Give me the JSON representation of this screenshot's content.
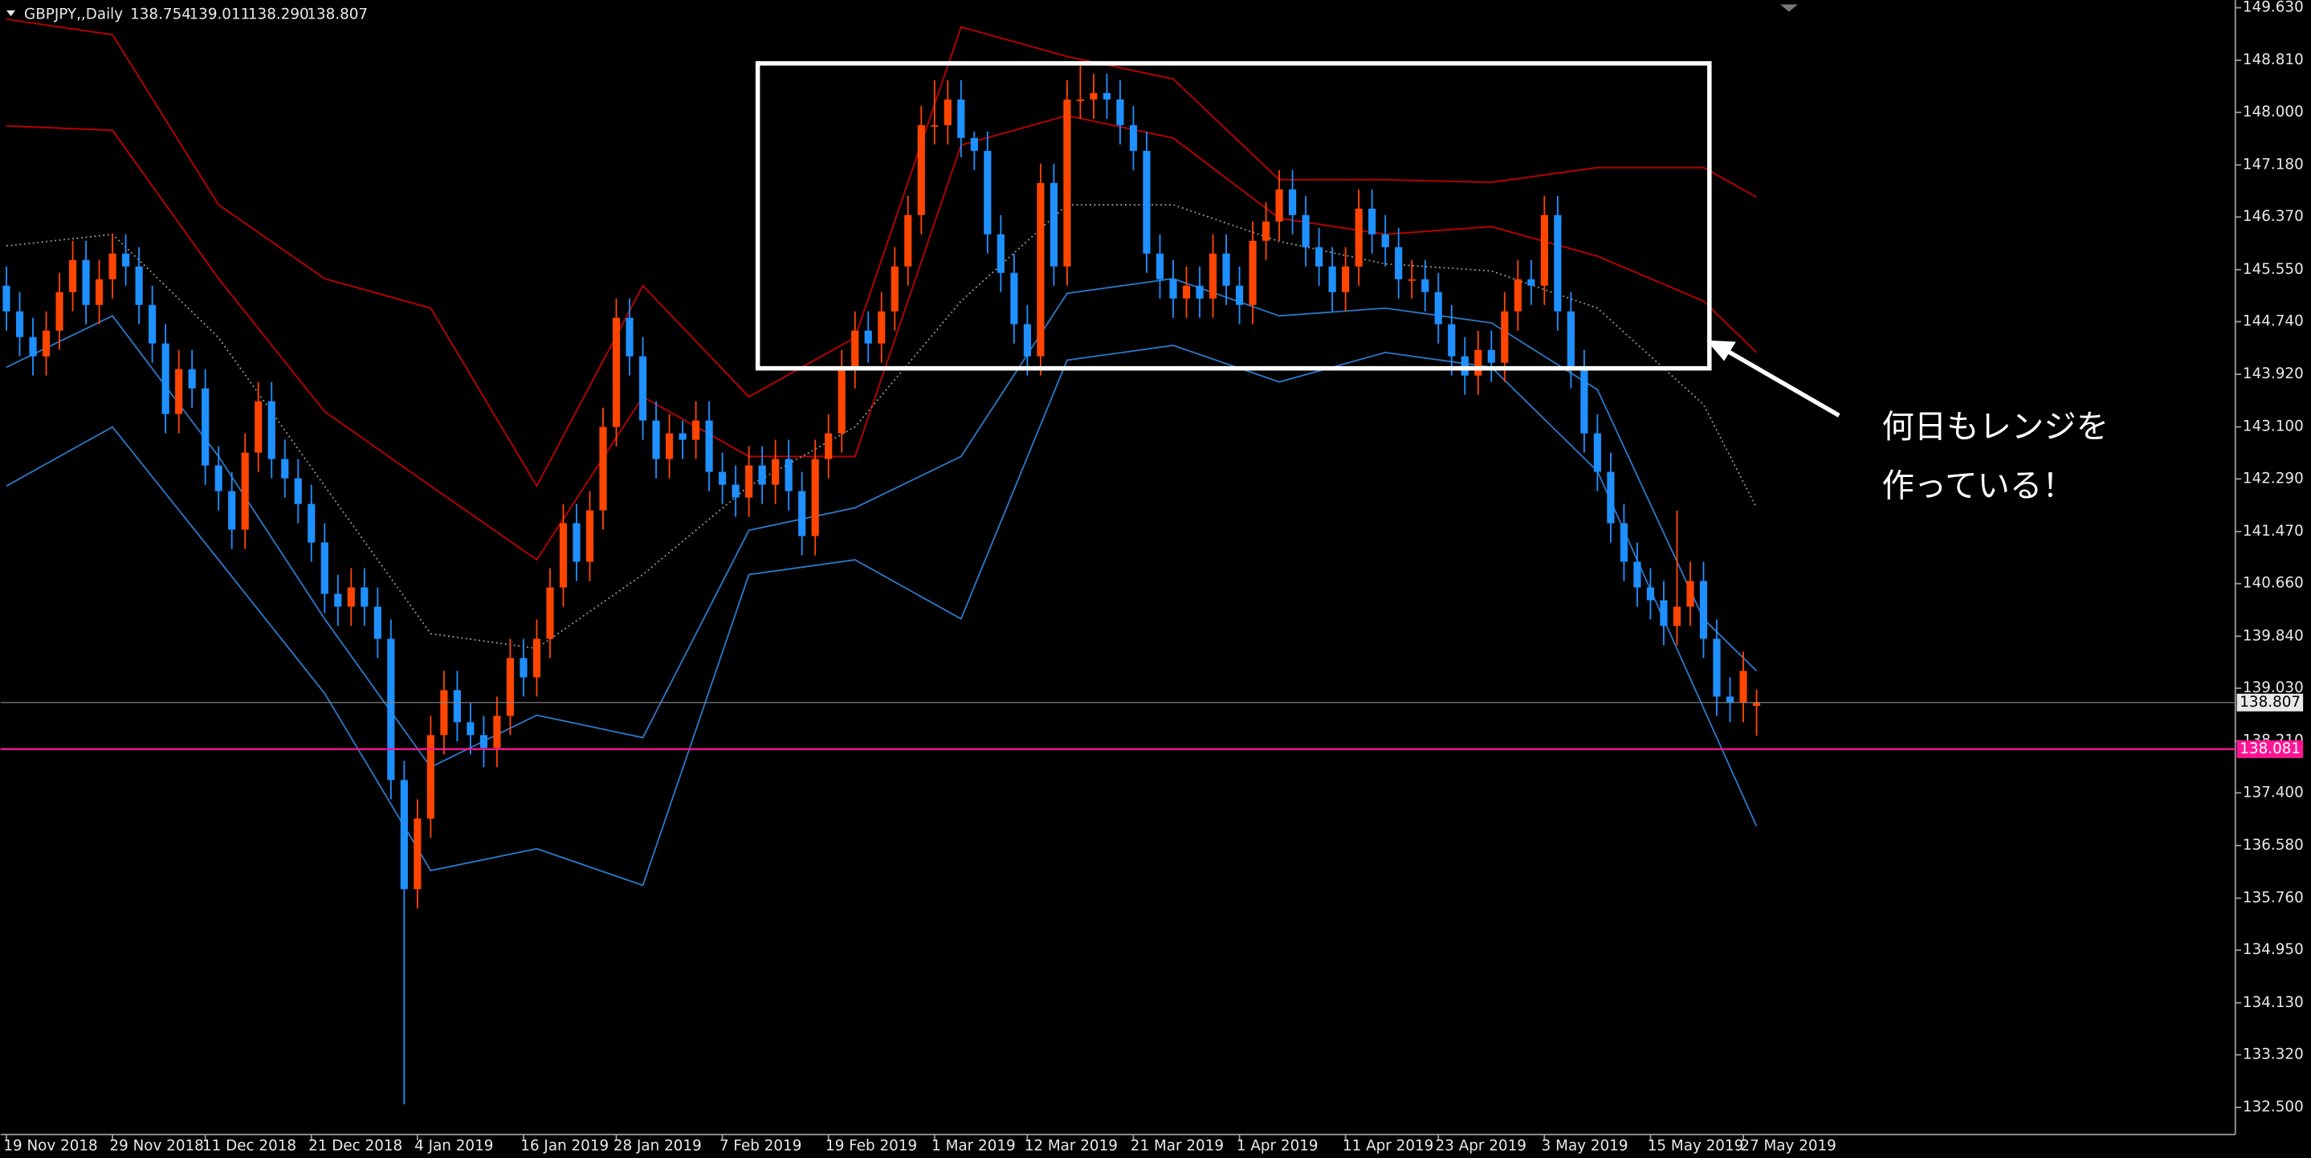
{
  "chart_data": {
    "type": "candlestick",
    "title": "GBPJPY,,Daily",
    "header_values": [
      "138.754",
      "139.011",
      "138.290",
      "138.807"
    ],
    "categories": [
      "19 Nov 2018",
      null,
      null,
      null,
      null,
      null,
      null,
      null,
      "29 Nov 2018",
      null,
      null,
      null,
      null,
      null,
      null,
      "11 Dec 2018",
      null,
      null,
      null,
      null,
      null,
      null,
      null,
      "21 Dec 2018",
      null,
      null,
      null,
      null,
      null,
      null,
      null,
      "4 Jan 2019",
      null,
      null,
      null,
      null,
      null,
      null,
      null,
      "16 Jan 2019",
      null,
      null,
      null,
      null,
      null,
      null,
      "28 Jan 2019",
      null,
      null,
      null,
      null,
      null,
      null,
      null,
      "7 Feb 2019",
      null,
      null,
      null,
      null,
      null,
      null,
      null,
      "19 Feb 2019",
      null,
      null,
      null,
      null,
      null,
      null,
      null,
      "1 Mar 2019",
      null,
      null,
      null,
      null,
      null,
      null,
      "12 Mar 2019",
      null,
      null,
      null,
      null,
      null,
      null,
      null,
      "21 Mar 2019",
      null,
      null,
      null,
      null,
      null,
      null,
      null,
      "1 Apr 2019",
      null,
      null,
      null,
      null,
      null,
      null,
      null,
      "11 Apr 2019",
      null,
      null,
      null,
      null,
      null,
      null,
      "23 Apr 2019",
      null,
      null,
      null,
      null,
      null,
      null,
      null,
      "3 May 2019",
      null,
      null,
      null,
      null,
      null,
      null,
      null,
      "15 May 2019",
      null,
      null,
      null,
      null,
      null,
      null,
      "27 May 2019",
      null
    ],
    "open": [
      145.3,
      144.9,
      144.5,
      144.2,
      144.6,
      145.2,
      145.7,
      145.0,
      145.4,
      145.8,
      145.6,
      145.0,
      144.4,
      143.3,
      144.0,
      143.7,
      142.5,
      142.1,
      141.5,
      142.7,
      143.5,
      142.6,
      142.3,
      141.9,
      141.3,
      140.5,
      140.3,
      140.6,
      140.3,
      139.8,
      137.6,
      135.9,
      137.0,
      138.3,
      139.0,
      138.5,
      138.3,
      138.1,
      138.6,
      139.5,
      139.2,
      139.8,
      140.6,
      141.6,
      141.0,
      141.8,
      143.1,
      144.8,
      144.2,
      143.2,
      142.6,
      143.0,
      142.9,
      143.2,
      142.4,
      142.2,
      142.0,
      142.5,
      142.2,
      142.6,
      142.1,
      141.4,
      142.6,
      143.0,
      144.0,
      144.6,
      144.4,
      144.9,
      145.6,
      146.4,
      147.8,
      147.8,
      148.2,
      147.6,
      147.4,
      146.1,
      145.5,
      144.7,
      144.2,
      146.9,
      145.6,
      148.2,
      148.2,
      148.3,
      148.2,
      147.8,
      147.4,
      145.8,
      145.4,
      145.1,
      145.3,
      145.1,
      145.8,
      145.3,
      145.0,
      146.0,
      146.3,
      146.8,
      146.4,
      145.9,
      145.6,
      145.2,
      145.6,
      146.5,
      146.1,
      145.9,
      145.4,
      145.4,
      145.2,
      144.7,
      144.2,
      143.9,
      144.3,
      144.1,
      144.9,
      145.4,
      145.3,
      146.4,
      144.9,
      144.0,
      143.0,
      142.4,
      141.6,
      141.0,
      140.6,
      140.4,
      140.0,
      140.3,
      140.7,
      139.8,
      138.9,
      138.8,
      138.754
    ],
    "high": [
      145.6,
      145.2,
      144.8,
      144.9,
      145.5,
      146.0,
      146.0,
      145.7,
      146.1,
      146.1,
      145.9,
      145.3,
      144.7,
      144.3,
      144.3,
      144.0,
      142.8,
      142.4,
      143.0,
      143.8,
      143.8,
      142.9,
      142.6,
      142.2,
      141.6,
      140.8,
      140.9,
      140.9,
      140.6,
      140.1,
      137.9,
      137.3,
      138.6,
      139.3,
      139.3,
      138.8,
      138.6,
      138.9,
      139.8,
      139.8,
      140.1,
      140.9,
      141.9,
      141.9,
      142.1,
      143.4,
      145.1,
      145.1,
      144.5,
      143.5,
      143.3,
      143.2,
      143.5,
      143.5,
      142.7,
      142.5,
      142.8,
      142.8,
      142.9,
      142.9,
      142.4,
      142.9,
      143.3,
      144.3,
      144.9,
      144.9,
      145.2,
      145.9,
      146.7,
      148.1,
      148.5,
      148.5,
      148.5,
      147.7,
      147.7,
      146.4,
      145.8,
      145.0,
      147.2,
      147.2,
      148.5,
      148.8,
      148.6,
      148.6,
      148.5,
      148.1,
      147.7,
      146.1,
      145.7,
      145.6,
      145.6,
      146.1,
      146.1,
      145.6,
      146.3,
      146.6,
      147.1,
      147.1,
      146.7,
      146.2,
      145.9,
      145.9,
      146.8,
      146.8,
      146.4,
      146.2,
      145.7,
      145.7,
      145.5,
      145.0,
      144.5,
      144.6,
      144.6,
      145.2,
      145.7,
      145.7,
      146.7,
      146.7,
      145.2,
      144.3,
      143.3,
      142.7,
      141.9,
      141.3,
      140.9,
      140.7,
      141.8,
      141.0,
      141.0,
      140.1,
      139.2,
      139.6,
      139.011
    ],
    "low": [
      144.6,
      144.2,
      143.9,
      143.9,
      144.3,
      144.9,
      144.7,
      144.7,
      145.1,
      145.3,
      144.7,
      144.1,
      143.0,
      143.0,
      143.4,
      142.2,
      141.8,
      141.2,
      141.2,
      142.4,
      142.3,
      142.0,
      141.6,
      141.0,
      140.2,
      140.0,
      140.0,
      140.0,
      139.5,
      137.3,
      132.55,
      135.6,
      136.7,
      138.0,
      138.2,
      138.0,
      137.8,
      137.8,
      138.3,
      138.9,
      138.9,
      139.5,
      140.3,
      140.7,
      140.7,
      141.5,
      142.8,
      143.9,
      142.9,
      142.3,
      142.3,
      142.6,
      142.6,
      142.1,
      141.9,
      141.7,
      141.7,
      141.9,
      141.9,
      141.8,
      141.1,
      141.1,
      142.3,
      142.7,
      143.7,
      144.1,
      144.1,
      144.6,
      145.3,
      146.1,
      147.5,
      147.5,
      147.3,
      147.1,
      145.8,
      145.2,
      144.4,
      143.9,
      143.9,
      145.3,
      145.3,
      147.9,
      147.9,
      147.9,
      147.5,
      147.1,
      145.5,
      145.1,
      144.8,
      144.8,
      144.8,
      144.8,
      145.0,
      144.7,
      144.7,
      145.7,
      146.0,
      146.1,
      145.6,
      145.3,
      144.9,
      144.9,
      145.3,
      145.8,
      145.6,
      145.1,
      145.1,
      144.9,
      144.4,
      143.9,
      143.6,
      143.6,
      143.8,
      143.8,
      144.6,
      145.0,
      145.0,
      144.6,
      143.7,
      142.7,
      142.1,
      141.3,
      140.7,
      140.3,
      140.1,
      139.7,
      139.7,
      140.0,
      139.5,
      138.6,
      138.5,
      138.5,
      138.29
    ],
    "close": [
      144.9,
      144.5,
      144.2,
      144.6,
      145.2,
      145.7,
      145.0,
      145.4,
      145.8,
      145.6,
      145.0,
      144.4,
      143.3,
      144.0,
      143.7,
      142.5,
      142.1,
      141.5,
      142.7,
      143.5,
      142.6,
      142.3,
      141.9,
      141.3,
      140.5,
      140.3,
      140.6,
      140.3,
      139.8,
      137.6,
      135.9,
      137.0,
      138.3,
      139.0,
      138.5,
      138.3,
      138.1,
      138.6,
      139.5,
      139.2,
      139.8,
      140.6,
      141.6,
      141.0,
      141.8,
      143.1,
      144.8,
      144.2,
      143.2,
      142.6,
      143.0,
      142.9,
      143.2,
      142.4,
      142.2,
      142.0,
      142.5,
      142.2,
      142.6,
      142.1,
      141.4,
      142.6,
      143.0,
      144.0,
      144.6,
      144.4,
      144.9,
      145.6,
      146.4,
      147.8,
      147.8,
      148.2,
      147.6,
      147.4,
      146.1,
      145.5,
      144.7,
      144.2,
      146.9,
      145.6,
      148.2,
      148.2,
      148.3,
      148.2,
      147.8,
      147.4,
      145.8,
      145.4,
      145.1,
      145.3,
      145.1,
      145.8,
      145.3,
      145.0,
      146.0,
      146.3,
      146.8,
      146.4,
      145.9,
      145.6,
      145.2,
      145.6,
      146.5,
      146.1,
      145.9,
      145.4,
      145.4,
      145.2,
      144.7,
      144.2,
      143.9,
      144.3,
      144.1,
      144.9,
      145.4,
      145.3,
      146.4,
      144.9,
      144.0,
      143.0,
      142.4,
      141.6,
      141.0,
      140.6,
      140.4,
      140.0,
      140.3,
      140.7,
      139.8,
      138.9,
      138.8,
      139.3,
      138.807
    ],
    "up_color": "#ff4500",
    "down_color": "#1e90ff",
    "ylim": [
      132.08,
      149.75
    ],
    "yticks": [
      {
        "value": 149.63,
        "label": "149.630"
      },
      {
        "value": 148.81,
        "label": "148.810"
      },
      {
        "value": 148.0,
        "label": "148.000"
      },
      {
        "value": 147.18,
        "label": "147.180"
      },
      {
        "value": 146.37,
        "label": "146.370"
      },
      {
        "value": 145.55,
        "label": "145.550"
      },
      {
        "value": 144.74,
        "label": "144.740"
      },
      {
        "value": 143.92,
        "label": "143.920"
      },
      {
        "value": 143.1,
        "label": "143.100"
      },
      {
        "value": 142.29,
        "label": "142.290"
      },
      {
        "value": 141.47,
        "label": "141.470"
      },
      {
        "value": 140.66,
        "label": "140.660"
      },
      {
        "value": 139.84,
        "label": "139.840"
      },
      {
        "value": 139.03,
        "label": "139.030"
      },
      {
        "value": 138.21,
        "label": "138.210"
      },
      {
        "value": 137.4,
        "label": "137.400"
      },
      {
        "value": 136.58,
        "label": "136.580"
      },
      {
        "value": 135.76,
        "label": "135.760"
      },
      {
        "value": 134.95,
        "label": "134.950"
      },
      {
        "value": 134.13,
        "label": "134.130"
      },
      {
        "value": 133.32,
        "label": "133.320"
      },
      {
        "value": 132.5,
        "label": "132.500"
      }
    ],
    "bands": [
      {
        "color": "#c00000",
        "dash": "none",
        "x": [
          0,
          8,
          16,
          24,
          32,
          40,
          48,
          56,
          64,
          72,
          80,
          88,
          96,
          104,
          112,
          120,
          128,
          132
        ],
        "values": [
          149.45,
          149.21,
          146.56,
          145.41,
          144.95,
          142.18,
          145.3,
          143.57,
          144.49,
          149.33,
          148.87,
          148.52,
          146.95,
          146.95,
          146.91,
          147.14,
          147.14,
          146.68
        ]
      },
      {
        "color": "#c00000",
        "dash": "none",
        "x": [
          0,
          8,
          16,
          24,
          32,
          40,
          48,
          56,
          64,
          72,
          80,
          88,
          96,
          104,
          112,
          120,
          128,
          132
        ],
        "values": [
          147.79,
          147.72,
          145.41,
          143.34,
          142.18,
          141.03,
          143.57,
          142.64,
          142.64,
          147.49,
          147.95,
          147.6,
          146.35,
          146.1,
          146.22,
          145.76,
          145.06,
          144.26
        ]
      },
      {
        "color": "#9a9a9a",
        "dash": "1 2",
        "x": [
          0,
          8,
          16,
          24,
          32,
          40,
          48,
          56,
          64,
          72,
          80,
          88,
          96,
          104,
          112,
          120,
          128,
          132
        ],
        "values": [
          145.92,
          146.1,
          144.49,
          142.18,
          139.88,
          139.65,
          140.8,
          142.18,
          143.1,
          145.06,
          146.56,
          146.56,
          145.99,
          145.64,
          145.53,
          144.95,
          143.45,
          141.84
        ]
      },
      {
        "color": "#2a78c8",
        "dash": "none",
        "x": [
          0,
          8,
          16,
          24,
          32,
          40,
          48,
          56,
          64,
          72,
          80,
          88,
          96,
          104,
          112,
          120,
          128,
          132
        ],
        "values": [
          144.03,
          144.83,
          142.64,
          140.11,
          137.8,
          138.61,
          138.26,
          141.49,
          141.84,
          142.64,
          145.18,
          145.41,
          144.83,
          144.95,
          144.72,
          143.68,
          140.11,
          139.3
        ]
      },
      {
        "color": "#2a78c8",
        "dash": "none",
        "x": [
          0,
          8,
          16,
          24,
          32,
          40,
          48,
          56,
          64,
          72,
          80,
          88,
          96,
          104,
          112,
          120,
          128,
          132
        ],
        "values": [
          142.18,
          143.1,
          141.03,
          138.95,
          136.19,
          136.53,
          135.96,
          140.8,
          141.03,
          140.11,
          144.14,
          144.37,
          143.8,
          144.26,
          144.03,
          142.41,
          138.72,
          136.88
        ]
      }
    ],
    "level_line": {
      "value": 138.081,
      "color": "#ff1493"
    },
    "annotation": [
      "何日もレンジを",
      "作っている！"
    ]
  }
}
